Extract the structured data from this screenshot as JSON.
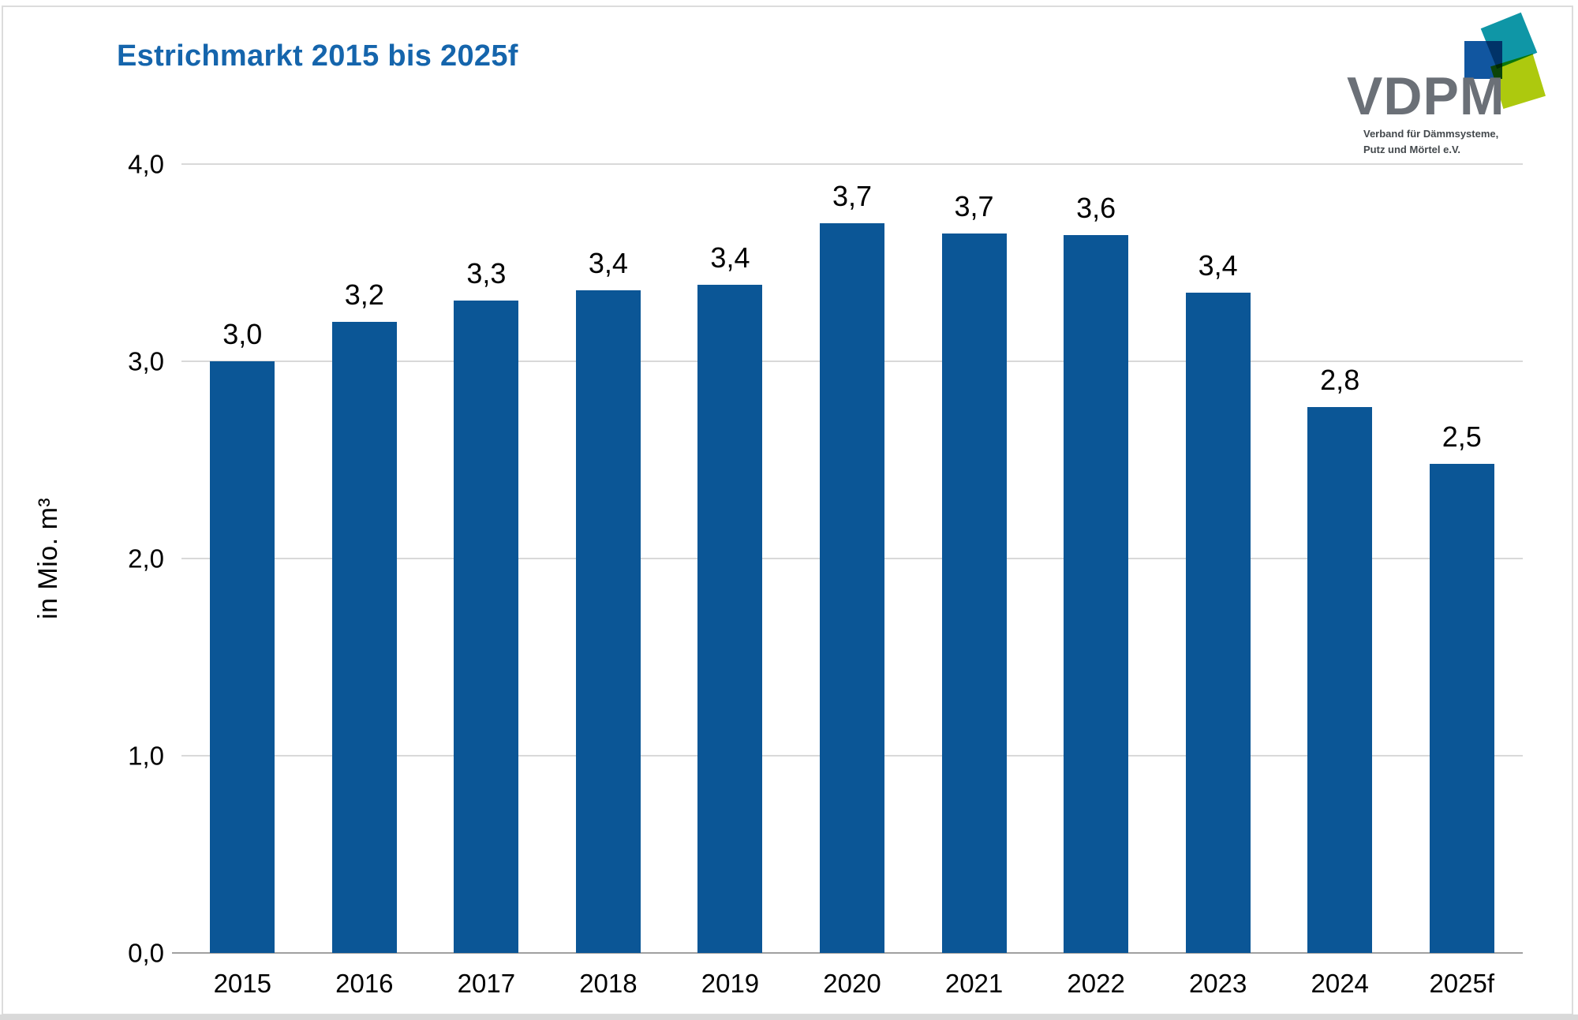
{
  "title": "Estrichmarkt 2015 bis 2025f",
  "logo": {
    "wordmark": "VDPM",
    "subtitle_line1": "Verband für Dämmsysteme,",
    "subtitle_line2": "Putz und Mörtel e.V.",
    "colors": {
      "teal": "#0f96a6",
      "blue": "#1156a0",
      "lime": "#adc90e",
      "wordmark_gray": "#6b7077"
    }
  },
  "colors": {
    "title_blue": "#1565ac",
    "bar_blue": "#0b5696",
    "gridline": "#d9d9d9",
    "axis_line": "#a0a0a0",
    "frame_border": "#dcdcdc",
    "bottom_strip": "#d9d9d9"
  },
  "chart_data": {
    "type": "bar",
    "title": "Estrichmarkt 2015 bis 2025f",
    "xlabel": "",
    "ylabel": "in Mio. m³",
    "ylim": [
      0,
      4
    ],
    "yticks": [
      "0,0",
      "1,0",
      "2,0",
      "3,0",
      "4,0"
    ],
    "grid": true,
    "legend": false,
    "categories": [
      "2015",
      "2016",
      "2017",
      "2018",
      "2019",
      "2020",
      "2021",
      "2022",
      "2023",
      "2024",
      "2025f"
    ],
    "values": [
      3.0,
      3.2,
      3.3,
      3.4,
      3.4,
      3.7,
      3.7,
      3.6,
      3.4,
      2.8,
      2.5
    ],
    "value_labels": [
      "3,0",
      "3,2",
      "3,3",
      "3,4",
      "3,4",
      "3,7",
      "3,7",
      "3,6",
      "3,4",
      "2,8",
      "2,5"
    ],
    "bar_heights_exact": [
      3.0,
      3.2,
      3.31,
      3.36,
      3.39,
      3.7,
      3.65,
      3.64,
      3.35,
      2.77,
      2.48
    ],
    "bar_color": "#0b5696"
  }
}
